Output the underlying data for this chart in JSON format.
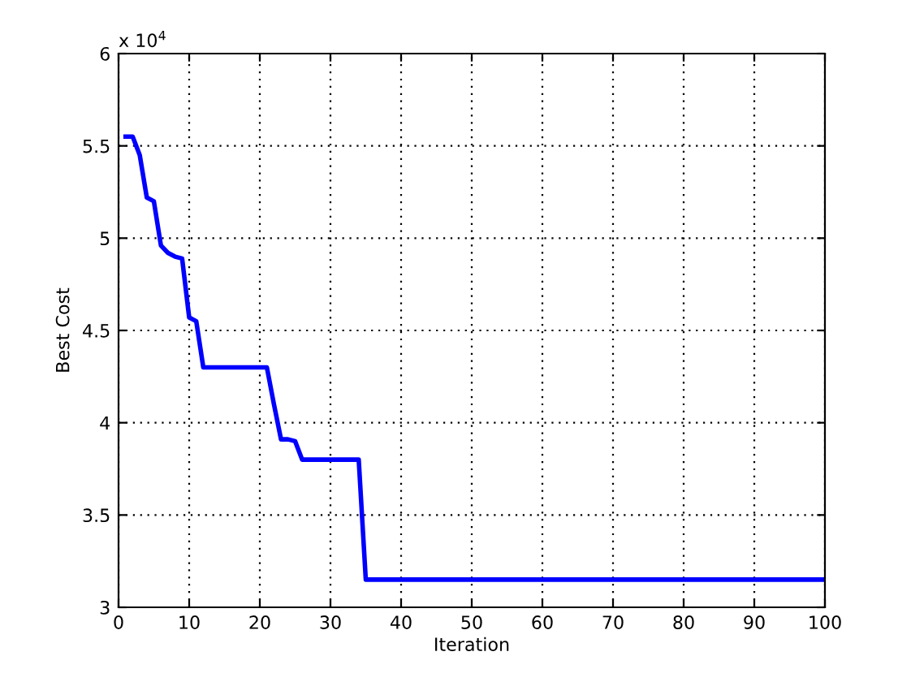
{
  "chart_data": {
    "type": "line",
    "xlabel": "Iteration",
    "ylabel": "Best Cost",
    "x": [
      1,
      2,
      3,
      4,
      5,
      6,
      7,
      8,
      9,
      10,
      11,
      12,
      21,
      22,
      23,
      24,
      25,
      26,
      34,
      35,
      100
    ],
    "series": [
      {
        "color": "#0000ff",
        "values": [
          5.55,
          5.55,
          5.45,
          5.22,
          5.2,
          4.96,
          4.92,
          4.9,
          4.89,
          4.57,
          4.55,
          4.3,
          4.3,
          4.1,
          3.91,
          3.91,
          3.9,
          3.8,
          3.8,
          3.15,
          3.15
        ]
      }
    ],
    "xlim": [
      0,
      100
    ],
    "xticks": [
      0,
      10,
      20,
      30,
      40,
      50,
      60,
      70,
      80,
      90,
      100
    ],
    "ylim": [
      3,
      6
    ],
    "yticks": [
      3,
      3.5,
      4,
      4.5,
      5,
      5.5,
      6
    ],
    "annotations": [
      "x 10$^{4}$"
    ],
    "grid": true,
    "marker": "none",
    "line_style": "solid",
    "legend": false
  }
}
